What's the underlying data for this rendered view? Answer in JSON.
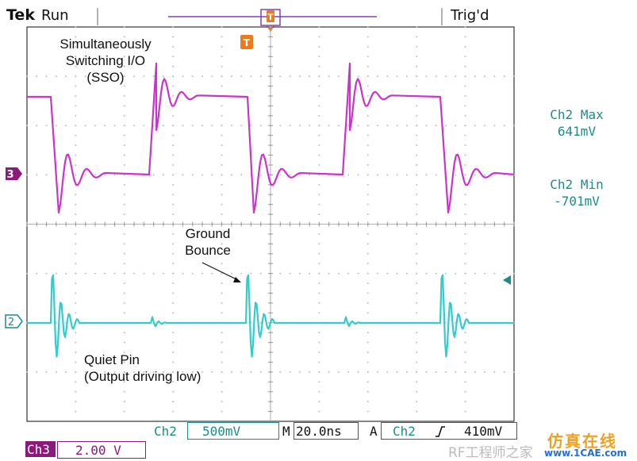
{
  "header": {
    "brand": "Tek",
    "run_state": "Run",
    "trigger_status": "Trig'd"
  },
  "trigger_marker_label": "T",
  "channel_markers": {
    "ch3": "3",
    "ch2": "2"
  },
  "measurements": {
    "ch2_max_label": "Ch2 Max",
    "ch2_max_value": "641mV",
    "ch2_min_label": "Ch2 Min",
    "ch2_min_value": "-701mV"
  },
  "annotations": {
    "sso_line1": "Simultaneously",
    "sso_line2": "Switching I/O",
    "sso_line3": "(SSO)",
    "ground_line1": "Ground",
    "ground_line2": "Bounce",
    "quiet_line1": "Quiet Pin",
    "quiet_line2": "(Output driving low)"
  },
  "bottom_bar": {
    "ch2_label": "Ch2",
    "ch2_scale": "500mV",
    "timebase_label": "M",
    "timebase": "20.0ns",
    "trigger_mode": "A",
    "trigger_channel": "Ch2",
    "trigger_slope_icon": "rising-edge-icon",
    "trigger_level": "410mV",
    "ch3_label": "Ch3",
    "ch3_scale": "2.00 V"
  },
  "watermark": {
    "text": "RF工程师之家",
    "site_cn": "仿真在线",
    "site_url": "www.1CAE.com"
  },
  "colors": {
    "ch3_magenta": "#cc33cc",
    "ch2_cyan": "#33cccc",
    "grid": "#cccccc",
    "trigger_orange": "#e87c1e",
    "ch3_badge": "#8b1a7a",
    "measure_teal": "#1b8c8c"
  }
}
